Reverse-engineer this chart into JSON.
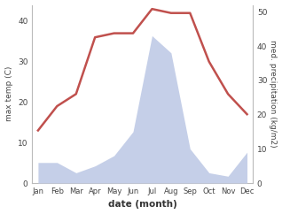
{
  "months": [
    "Jan",
    "Feb",
    "Mar",
    "Apr",
    "May",
    "Jun",
    "Jul",
    "Aug",
    "Sep",
    "Oct",
    "Nov",
    "Dec"
  ],
  "temperature": [
    13,
    19,
    22,
    36,
    37,
    37,
    43,
    42,
    42,
    30,
    22,
    17
  ],
  "precipitation": [
    6,
    6,
    3,
    5,
    8,
    15,
    43,
    38,
    10,
    3,
    2,
    9
  ],
  "temp_color": "#c0504d",
  "precip_fill_color": "#c5cfe8",
  "temp_ylim": [
    0,
    44
  ],
  "precip_ylim": [
    0,
    52
  ],
  "temp_yticks": [
    0,
    10,
    20,
    30,
    40
  ],
  "precip_yticks": [
    0,
    10,
    20,
    30,
    40,
    50
  ],
  "xlabel": "date (month)",
  "ylabel_left": "max temp (C)",
  "ylabel_right": "med. precipitation (kg/m2)",
  "fig_width": 3.18,
  "fig_height": 2.42,
  "dpi": 100
}
